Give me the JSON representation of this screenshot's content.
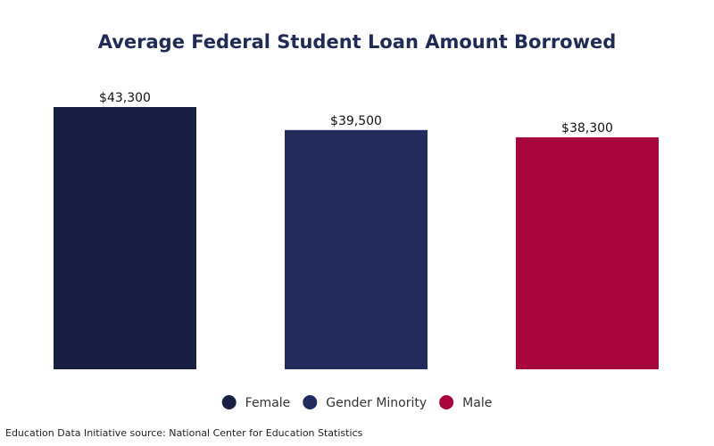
{
  "chart_data": {
    "type": "bar",
    "title": "Average Federal Student Loan Amount Borrowed",
    "categories": [
      "Female",
      "Gender Minority",
      "Male"
    ],
    "values": [
      43300,
      39500,
      38300
    ],
    "value_labels": [
      "$43,300",
      "$39,500",
      "$38,300"
    ],
    "colors": [
      "#172043",
      "#212b5c",
      "#a8053c"
    ],
    "legend": "bottom",
    "source": "Education Data Initiative source: National Center for Education Statistics"
  }
}
